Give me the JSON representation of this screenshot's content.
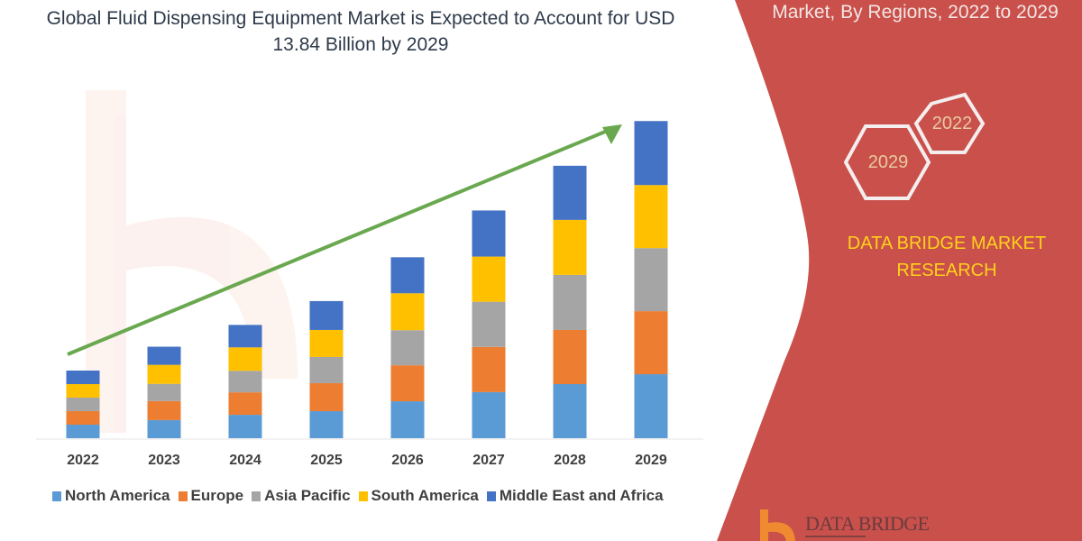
{
  "header": {
    "title": "Global Fluid Dispensing Equipment Market is Expected to Account for USD 13.84 Billion by 2029",
    "subtitle": "Market, By Regions, 2022 to 2029"
  },
  "side_panel": {
    "hex_years": [
      "2022",
      "2029"
    ],
    "brand": "DATA BRIDGE MARKET RESEARCH",
    "logo_text": "DATA BRIDGE",
    "panel_color": "#c9504b",
    "brand_color": "#ffd21a"
  },
  "chart_data": {
    "type": "bar",
    "stacked": true,
    "title": "Global Fluid Dispensing Equipment Market is Expected to Account for USD 13.84 Billion by 2029",
    "xlabel": "",
    "ylabel": "",
    "y_axis_shown": false,
    "grid": false,
    "legend_placement": "bottom",
    "ylim": [
      0,
      14
    ],
    "trend_arrow": {
      "color": "#6aa84f",
      "from": "2022",
      "to": "2029"
    },
    "categories": [
      "2022",
      "2023",
      "2024",
      "2025",
      "2026",
      "2027",
      "2028",
      "2029"
    ],
    "series": [
      {
        "name": "North America",
        "color": "#5b9bd5",
        "values": [
          0.59,
          0.79,
          1.02,
          1.18,
          1.61,
          2.01,
          2.36,
          2.79
        ]
      },
      {
        "name": "Europe",
        "color": "#ed7d31",
        "values": [
          0.59,
          0.83,
          0.98,
          1.22,
          1.57,
          1.97,
          2.36,
          2.75
        ]
      },
      {
        "name": "Asia Pacific",
        "color": "#a5a5a5",
        "values": [
          0.59,
          0.75,
          0.94,
          1.14,
          1.53,
          1.97,
          2.4,
          2.75
        ]
      },
      {
        "name": "South America",
        "color": "#ffc000",
        "values": [
          0.59,
          0.83,
          1.02,
          1.18,
          1.61,
          1.97,
          2.4,
          2.75
        ]
      },
      {
        "name": "Middle East and Africa",
        "color": "#4472c4",
        "values": [
          0.59,
          0.79,
          0.98,
          1.26,
          1.57,
          2.01,
          2.36,
          2.79
        ]
      }
    ]
  }
}
